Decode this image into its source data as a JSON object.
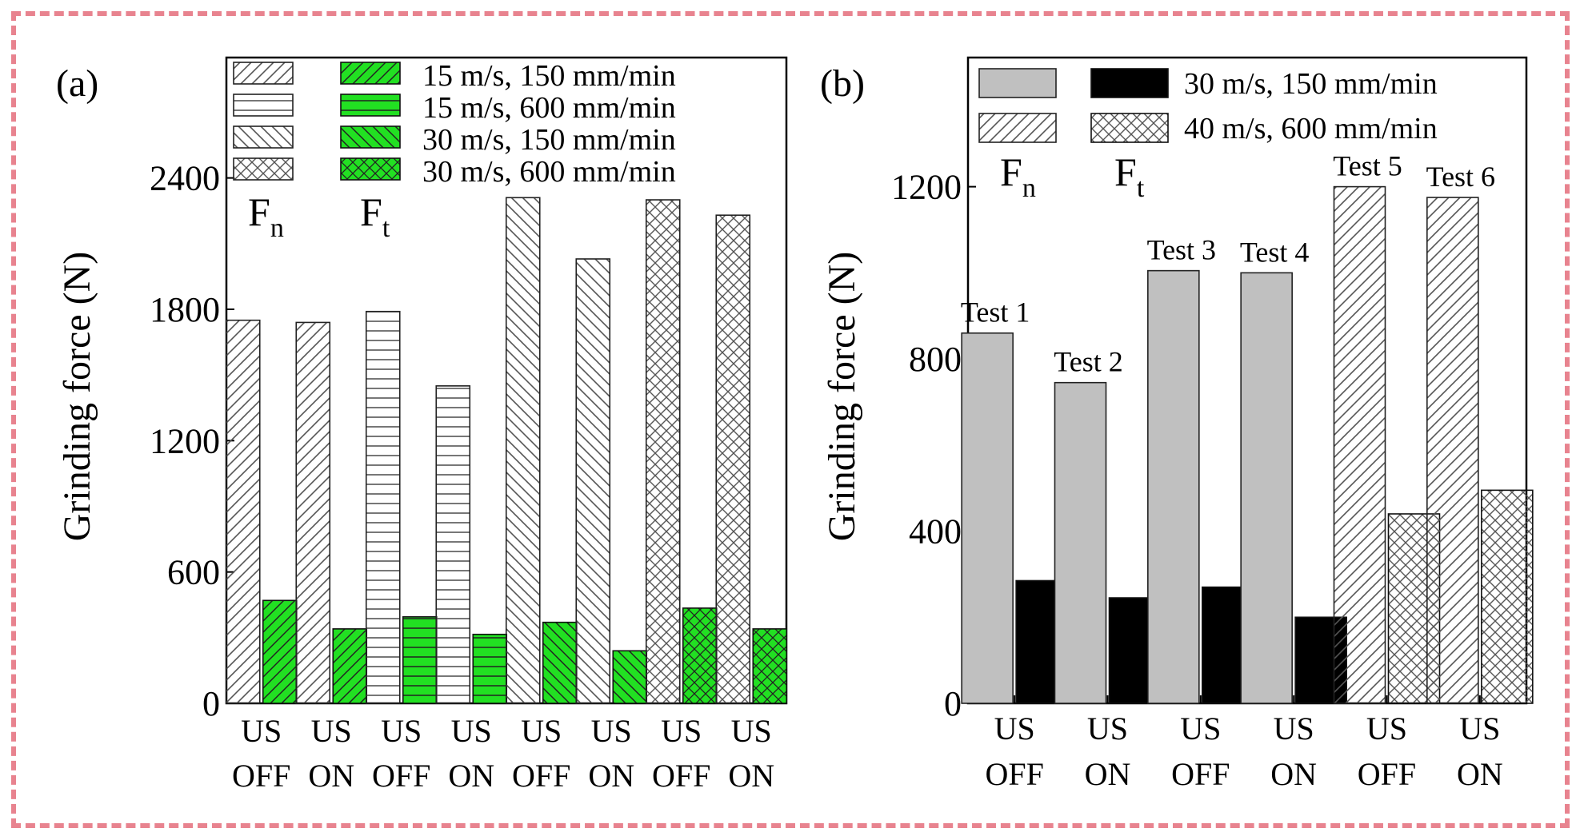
{
  "chart_data": [
    {
      "type": "bar",
      "panel_label": "(a)",
      "ylabel": "Grinding force (N)",
      "ylim": [
        0,
        2950
      ],
      "yticks": [
        0,
        600,
        1200,
        1800,
        2400
      ],
      "categories": [
        [
          "US",
          "OFF"
        ],
        [
          "US",
          "ON"
        ],
        [
          "US",
          "OFF"
        ],
        [
          "US",
          "ON"
        ],
        [
          "US",
          "OFF"
        ],
        [
          "US",
          "ON"
        ],
        [
          "US",
          "OFF"
        ],
        [
          "US",
          "ON"
        ]
      ],
      "series": [
        {
          "name": "Fn",
          "values": [
            1750,
            1740,
            1790,
            1450,
            2310,
            2030,
            2300,
            2230
          ]
        },
        {
          "name": "Ft",
          "values": [
            470,
            340,
            395,
            315,
            370,
            240,
            435,
            340
          ]
        }
      ],
      "bar_conditions": [
        "15 m/s, 150 mm/min",
        "15 m/s, 150 mm/min",
        "15 m/s, 600 mm/min",
        "15 m/s, 600 mm/min",
        "30 m/s, 150 mm/min",
        "30 m/s, 150 mm/min",
        "30 m/s, 600 mm/min",
        "30 m/s, 600 mm/min"
      ],
      "legend": {
        "entries": [
          "15 m/s, 150 mm/min",
          "15 m/s, 600 mm/min",
          "30 m/s, 150 mm/min",
          "30 m/s, 600 mm/min"
        ],
        "fn_symbol": "F",
        "fn_sub": "n",
        "ft_symbol": "F",
        "ft_sub": "t"
      },
      "colors": {
        "fn_fill": "#ffffff",
        "ft_fill": "#22e022",
        "pattern": "#555555"
      }
    },
    {
      "type": "bar",
      "panel_label": "(b)",
      "ylabel": "Grinding force (N)",
      "ylim": [
        0,
        1500
      ],
      "yticks": [
        0,
        400,
        800,
        1200
      ],
      "categories": [
        [
          "US",
          "OFF"
        ],
        [
          "US",
          "ON"
        ],
        [
          "US",
          "OFF"
        ],
        [
          "US",
          "ON"
        ],
        [
          "US",
          "OFF"
        ],
        [
          "US",
          "ON"
        ]
      ],
      "test_labels": [
        "Test 1",
        "Test 2",
        "Test 3",
        "Test 4",
        "Test 5",
        "Test 6"
      ],
      "series": [
        {
          "name": "Fn",
          "values": [
            860,
            745,
            1005,
            1000,
            1200,
            1175
          ]
        },
        {
          "name": "Ft",
          "values": [
            285,
            245,
            270,
            200,
            440,
            495
          ]
        }
      ],
      "bar_conditions": [
        "30 m/s, 150 mm/min",
        "30 m/s, 150 mm/min",
        "30 m/s, 150 mm/min",
        "30 m/s, 150 mm/min",
        "40 m/s, 600 mm/min",
        "40 m/s, 600 mm/min"
      ],
      "legend": {
        "entries": [
          "30 m/s, 150 mm/min",
          "40 m/s, 600 mm/min"
        ],
        "fn_symbol": "F",
        "fn_sub": "n",
        "ft_symbol": "F",
        "ft_sub": "t"
      },
      "colors": {
        "fn_fill": "#c0c0c0",
        "ft_fill": "#000000",
        "pattern": "#555555"
      }
    }
  ]
}
